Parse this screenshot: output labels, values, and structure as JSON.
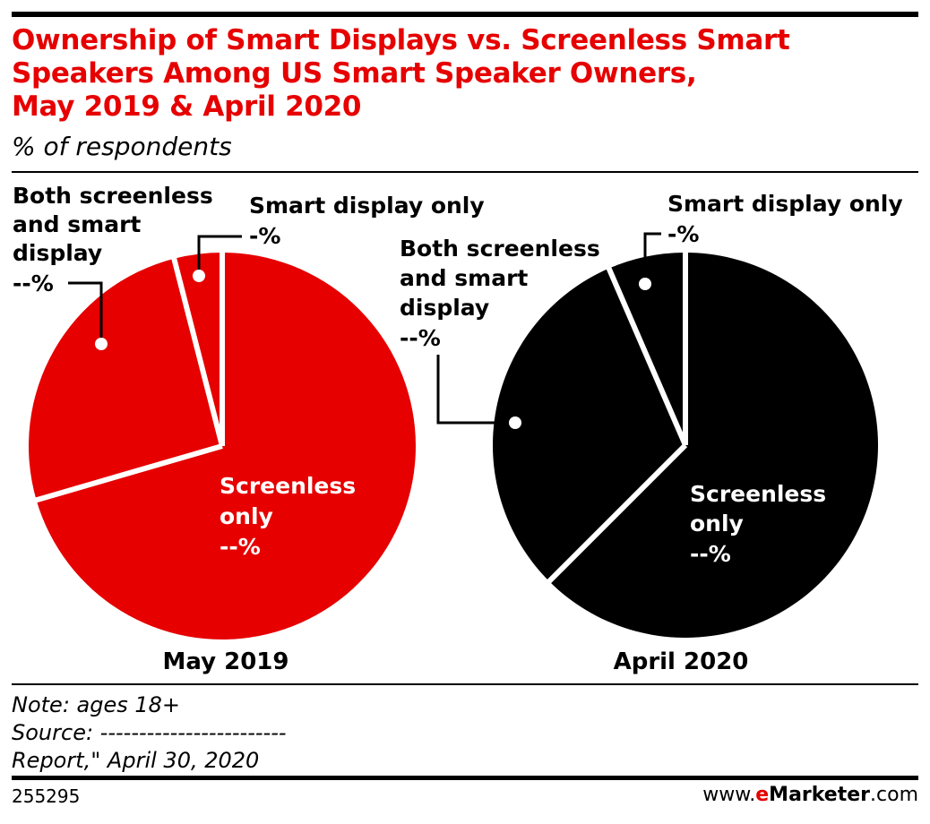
{
  "header": {
    "title_lines": [
      "Ownership of Smart Displays vs. Screenless Smart",
      "Speakers Among US Smart Speaker Owners,",
      "May 2019 & April 2020"
    ],
    "subtitle": "% of respondents"
  },
  "colors": {
    "accent": "#e60000",
    "dark": "#000000",
    "divider": "#ffffff"
  },
  "chart_data": [
    {
      "type": "pie",
      "caption": "May 2019",
      "color": "#e60000",
      "slices": [
        {
          "name": "Screenless only",
          "value": 70.5,
          "label_lines": [
            "Screenless",
            "only"
          ],
          "value_label": "--%"
        },
        {
          "name": "Both screenless and smart display",
          "value": 25.5,
          "label_lines": [
            "Both screenless",
            "and smart",
            "display"
          ],
          "value_label": "--%"
        },
        {
          "name": "Smart display only",
          "value": 4.0,
          "label_lines": [
            "Smart display only"
          ],
          "value_label": "-%"
        }
      ]
    },
    {
      "type": "pie",
      "caption": "April 2020",
      "color": "#000000",
      "slices": [
        {
          "name": "Screenless only",
          "value": 62.5,
          "label_lines": [
            "Screenless",
            "only"
          ],
          "value_label": "--%"
        },
        {
          "name": "Both screenless and smart display",
          "value": 31.0,
          "label_lines": [
            "Both screenless",
            "and smart",
            "display"
          ],
          "value_label": "--%"
        },
        {
          "name": "Smart display only",
          "value": 6.5,
          "label_lines": [
            "Smart display only"
          ],
          "value_label": "-%"
        }
      ]
    }
  ],
  "footer": {
    "note": "Note: ages 18+",
    "source": "Source: ------------------------",
    "report": "Report,\" April 30, 2020",
    "chart_id": "255295",
    "brand_prefix": "www.",
    "brand_e": "e",
    "brand_name": "Marketer",
    "brand_suffix": ".com"
  }
}
